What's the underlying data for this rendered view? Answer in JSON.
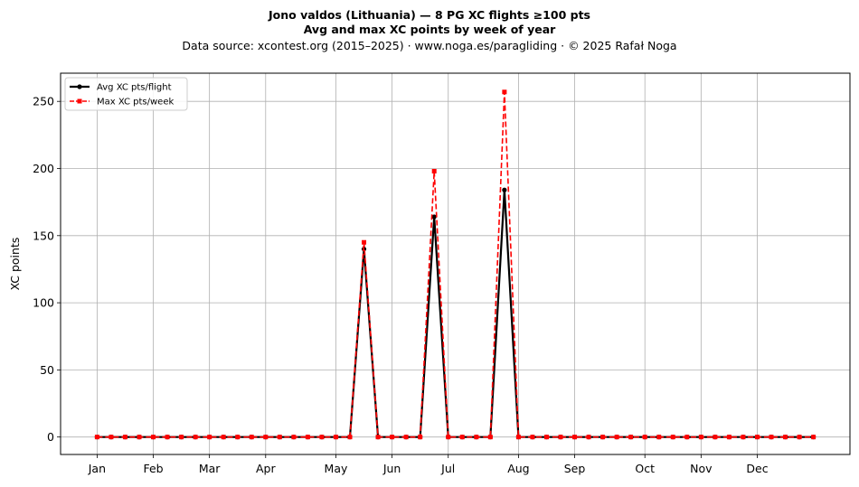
{
  "figure": {
    "title_line1": "Jono valdos (Lithuania)  —  8 PG XC flights ≥100 pts",
    "title_line2": "Avg and max XC points by week of year",
    "subtitle": "Data source: xcontest.org (2015–2025)  ·  www.noga.es/paragliding  ·  © 2025 Rafał Noga"
  },
  "chart_data": {
    "type": "line",
    "title": "Avg and max XC points by week of year",
    "xlabel": "",
    "ylabel": "XC points",
    "x_range": [
      1,
      52
    ],
    "x_padding_weeks": 2.6,
    "ylim": [
      -13,
      271
    ],
    "y_ticks": [
      0,
      50,
      100,
      150,
      200,
      250
    ],
    "x_ticks": [
      {
        "week": 1,
        "label": "Jan"
      },
      {
        "week": 5,
        "label": "Feb"
      },
      {
        "week": 9,
        "label": "Mar"
      },
      {
        "week": 13,
        "label": "Apr"
      },
      {
        "week": 18,
        "label": "May"
      },
      {
        "week": 22,
        "label": "Jun"
      },
      {
        "week": 26,
        "label": "Jul"
      },
      {
        "week": 31,
        "label": "Aug"
      },
      {
        "week": 35,
        "label": "Sep"
      },
      {
        "week": 40,
        "label": "Oct"
      },
      {
        "week": 44,
        "label": "Nov"
      },
      {
        "week": 48,
        "label": "Dec"
      }
    ],
    "grid": true,
    "legend_position": "top-left",
    "series": [
      {
        "name": "Avg XC pts/flight",
        "color": "#000000",
        "style": "solid",
        "marker": "circle",
        "values": [
          0,
          0,
          0,
          0,
          0,
          0,
          0,
          0,
          0,
          0,
          0,
          0,
          0,
          0,
          0,
          0,
          0,
          0,
          0,
          140,
          0,
          0,
          0,
          0,
          164,
          0,
          0,
          0,
          0,
          184,
          0,
          0,
          0,
          0,
          0,
          0,
          0,
          0,
          0,
          0,
          0,
          0,
          0,
          0,
          0,
          0,
          0,
          0,
          0,
          0,
          0,
          0
        ]
      },
      {
        "name": "Max XC pts/week",
        "color": "#ff0000",
        "style": "dashed",
        "marker": "square",
        "values": [
          0,
          0,
          0,
          0,
          0,
          0,
          0,
          0,
          0,
          0,
          0,
          0,
          0,
          0,
          0,
          0,
          0,
          0,
          0,
          145,
          0,
          0,
          0,
          0,
          198,
          0,
          0,
          0,
          0,
          257,
          0,
          0,
          0,
          0,
          0,
          0,
          0,
          0,
          0,
          0,
          0,
          0,
          0,
          0,
          0,
          0,
          0,
          0,
          0,
          0,
          0,
          0
        ]
      }
    ]
  }
}
